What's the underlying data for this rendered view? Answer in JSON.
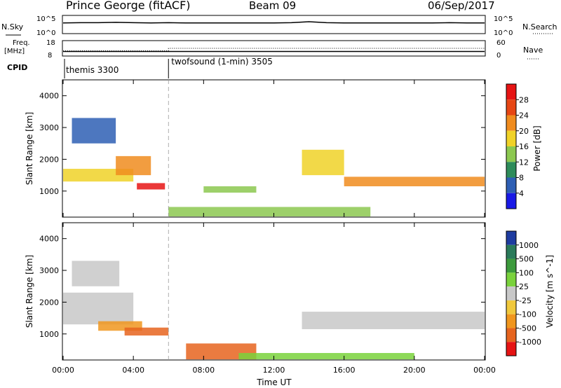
{
  "header": {
    "site": "Prince George (fitACF)",
    "beam": "Beam 09",
    "date": "06/Sep/2017"
  },
  "sky_panel": {
    "left_label": "N.Sky",
    "right_label": "N.Search",
    "tick_top": "10^5",
    "tick_bottom": "10^0"
  },
  "freq_panel": {
    "left_label_line1": "Freq.",
    "left_label_line2": "[MHz]",
    "left_ticks": [
      "18",
      "8"
    ],
    "right_label": "Nave",
    "right_ticks": [
      "60",
      "0"
    ]
  },
  "cpid": {
    "label": "CPID",
    "modes": [
      {
        "name": "themis 3300",
        "start": 0
      },
      {
        "name": "twofsound (1-min) 3505",
        "start": 6.0
      }
    ]
  },
  "colors": {
    "power": [
      "#1a1ae6",
      "#2e5fb4",
      "#2e8c5a",
      "#8cc850",
      "#f0d228",
      "#f08c1e",
      "#e64614",
      "#e61414"
    ],
    "velocity": [
      "#1e3ca0",
      "#2a7a5a",
      "#3c9a3c",
      "#7ad23c",
      "#c8c8c8",
      "#f0c83c",
      "#f0961e",
      "#e6641e",
      "#e61414"
    ]
  },
  "chart_data": [
    {
      "type": "line",
      "title": "N.Sky / N.Search",
      "x": [
        0,
        1,
        2,
        3,
        4,
        5,
        6,
        7,
        8,
        9,
        10,
        11,
        12,
        13,
        14,
        15,
        16,
        17,
        18,
        19,
        20,
        21,
        22,
        23,
        24
      ],
      "series": [
        {
          "name": "N.Sky",
          "values": [
            3.0,
            3.1,
            3.1,
            3.2,
            3.1,
            3.0,
            3.1,
            3.0,
            3.0,
            3.0,
            3.0,
            3.0,
            3.0,
            3.1,
            3.4,
            3.1,
            3.0,
            3.0,
            3.0,
            3.0,
            3.0,
            3.0,
            3.1,
            3.0,
            3.0
          ]
        }
      ],
      "ylim": [
        0,
        5
      ],
      "xlim": [
        0,
        24
      ]
    },
    {
      "type": "line",
      "title": "Frequency / Nave",
      "x": [
        0,
        6,
        6,
        16.6,
        16.6,
        24
      ],
      "series": [
        {
          "name": "Freq",
          "values": [
            10.5,
            10.5,
            10.5,
            10.5,
            10.5,
            10.5
          ]
        },
        {
          "name": "Nave",
          "values": [
            18,
            18,
            30,
            30,
            30,
            30
          ]
        }
      ],
      "xlim": [
        0,
        24
      ]
    },
    {
      "type": "heatmap",
      "title": "Power [dB]",
      "xlabel": "",
      "ylabel": "Slant Range [km]",
      "xlim": [
        0,
        24
      ],
      "ylim": [
        180,
        4500
      ],
      "yticks": [
        1000,
        2000,
        3000,
        4000
      ],
      "colorbar": {
        "label": "Power [dB]",
        "ticks": [
          "4",
          "8",
          "12",
          "16",
          "20",
          "24",
          "28"
        ]
      },
      "regions": [
        {
          "t0": 0.0,
          "t1": 4.0,
          "r0": 1300,
          "r1": 1700,
          "level": 4
        },
        {
          "t0": 3.0,
          "t1": 5.0,
          "r0": 1500,
          "r1": 2100,
          "level": 5
        },
        {
          "t0": 4.2,
          "t1": 5.8,
          "r0": 1050,
          "r1": 1250,
          "level": 7
        },
        {
          "t0": 0.5,
          "t1": 3.0,
          "r0": 2500,
          "r1": 3300,
          "level": 1
        },
        {
          "t0": 8.0,
          "t1": 11.0,
          "r0": 950,
          "r1": 1150,
          "level": 3
        },
        {
          "t0": 13.6,
          "t1": 16.0,
          "r0": 1500,
          "r1": 2300,
          "level": 4
        },
        {
          "t0": 16.0,
          "t1": 24.0,
          "r0": 1150,
          "r1": 1450,
          "level": 5
        },
        {
          "t0": 6.0,
          "t1": 17.5,
          "r0": 200,
          "r1": 500,
          "level": 3
        }
      ]
    },
    {
      "type": "heatmap",
      "title": "Velocity [m s^-1]",
      "xlabel": "Time UT",
      "ylabel": "Slant Range [km]",
      "xlim": [
        0,
        24
      ],
      "ylim": [
        180,
        4500
      ],
      "yticks": [
        1000,
        2000,
        3000,
        4000
      ],
      "xticks": [
        "00:00",
        "04:00",
        "08:00",
        "12:00",
        "16:00",
        "20:00",
        "00:00"
      ],
      "colorbar": {
        "label": "Velocity [m s^-1]",
        "ticks": [
          "1000",
          "500",
          "100",
          "25",
          "-25",
          "-100",
          "-500",
          "-1000"
        ]
      },
      "regions": [
        {
          "t0": 0.0,
          "t1": 4.0,
          "r0": 1300,
          "r1": 2300,
          "level": 4
        },
        {
          "t0": 2.0,
          "t1": 4.5,
          "r0": 1100,
          "r1": 1400,
          "level": 6
        },
        {
          "t0": 3.5,
          "t1": 6.0,
          "r0": 950,
          "r1": 1200,
          "level": 7
        },
        {
          "t0": 0.5,
          "t1": 3.2,
          "r0": 2500,
          "r1": 3300,
          "level": 4
        },
        {
          "t0": 13.6,
          "t1": 24.0,
          "r0": 1150,
          "r1": 1700,
          "level": 4
        },
        {
          "t0": 7.0,
          "t1": 11.0,
          "r0": 200,
          "r1": 700,
          "level": 7
        },
        {
          "t0": 10.0,
          "t1": 20.0,
          "r0": 200,
          "r1": 400,
          "level": 3
        }
      ]
    }
  ]
}
